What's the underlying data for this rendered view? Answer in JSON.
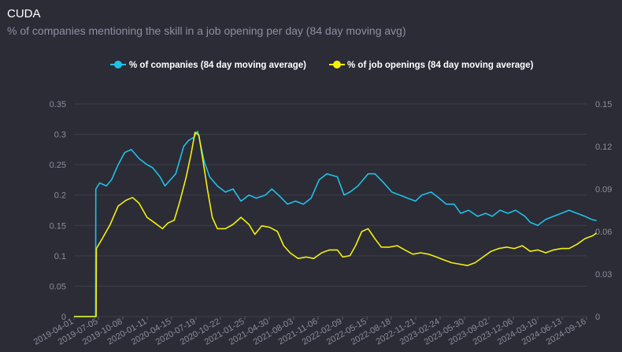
{
  "title": "CUDA",
  "subtitle": "% of companies mentioning the skill in a job opening per day (84 day moving avg)",
  "chart_data": {
    "type": "line",
    "x_dates": [
      "2019-04-01",
      "2019-07-05",
      "2019-10-08",
      "2020-01-11",
      "2020-04-15",
      "2020-07-19",
      "2020-10-22",
      "2021-01-25",
      "2021-04-30",
      "2021-08-03",
      "2021-11-06",
      "2022-02-09",
      "2022-05-15",
      "2022-08-18",
      "2022-11-21",
      "2023-02-24",
      "2023-05-30",
      "2023-09-02",
      "2023-12-06",
      "2024-03-10",
      "2024-06-13",
      "2024-09-16"
    ],
    "y_left": {
      "ticks": [
        "0",
        "0.05",
        "0.1",
        "0.15",
        "0.2",
        "0.25",
        "0.3",
        "0.35"
      ],
      "min": 0,
      "max": 0.35
    },
    "y_right": {
      "ticks": [
        "0",
        "0.03",
        "0.06",
        "0.09",
        "0.12",
        "0.15"
      ],
      "min": 0,
      "max": 0.15
    },
    "legend_position": "top-center",
    "grid": true,
    "series": [
      {
        "name": "% of companies (84 day moving average)",
        "color": "#1fc1e8",
        "axis": "left",
        "points": [
          [
            "2019-04-01",
            0
          ],
          [
            "2019-06-10",
            0
          ],
          [
            "2019-06-24",
            0
          ],
          [
            "2019-06-25",
            0.21
          ],
          [
            "2019-07-10",
            0.22
          ],
          [
            "2019-08-05",
            0.215
          ],
          [
            "2019-08-25",
            0.225
          ],
          [
            "2019-09-20",
            0.25
          ],
          [
            "2019-10-15",
            0.27
          ],
          [
            "2019-11-10",
            0.275
          ],
          [
            "2019-12-10",
            0.26
          ],
          [
            "2020-01-10",
            0.25
          ],
          [
            "2020-02-01",
            0.245
          ],
          [
            "2020-03-01",
            0.23
          ],
          [
            "2020-03-20",
            0.215
          ],
          [
            "2020-04-10",
            0.225
          ],
          [
            "2020-05-01",
            0.235
          ],
          [
            "2020-06-01",
            0.28
          ],
          [
            "2020-06-20",
            0.29
          ],
          [
            "2020-07-10",
            0.295
          ],
          [
            "2020-07-25",
            0.305
          ],
          [
            "2020-08-05",
            0.285
          ],
          [
            "2020-08-20",
            0.255
          ],
          [
            "2020-09-10",
            0.23
          ],
          [
            "2020-10-10",
            0.215
          ],
          [
            "2020-11-10",
            0.205
          ],
          [
            "2020-12-10",
            0.21
          ],
          [
            "2021-01-10",
            0.19
          ],
          [
            "2021-02-10",
            0.2
          ],
          [
            "2021-03-10",
            0.195
          ],
          [
            "2021-04-15",
            0.2
          ],
          [
            "2021-05-10",
            0.21
          ],
          [
            "2021-06-05",
            0.2
          ],
          [
            "2021-07-10",
            0.185
          ],
          [
            "2021-08-10",
            0.19
          ],
          [
            "2021-09-10",
            0.185
          ],
          [
            "2021-10-10",
            0.195
          ],
          [
            "2021-11-10",
            0.225
          ],
          [
            "2021-12-10",
            0.235
          ],
          [
            "2022-01-20",
            0.23
          ],
          [
            "2022-02-15",
            0.2
          ],
          [
            "2022-03-10",
            0.205
          ],
          [
            "2022-04-10",
            0.215
          ],
          [
            "2022-05-20",
            0.235
          ],
          [
            "2022-06-15",
            0.235
          ],
          [
            "2022-07-20",
            0.22
          ],
          [
            "2022-08-20",
            0.205
          ],
          [
            "2022-09-20",
            0.2
          ],
          [
            "2022-10-20",
            0.195
          ],
          [
            "2022-11-20",
            0.19
          ],
          [
            "2022-12-15",
            0.2
          ],
          [
            "2023-01-20",
            0.205
          ],
          [
            "2023-02-20",
            0.195
          ],
          [
            "2023-03-20",
            0.185
          ],
          [
            "2023-04-20",
            0.185
          ],
          [
            "2023-05-15",
            0.17
          ],
          [
            "2023-06-15",
            0.175
          ],
          [
            "2023-07-20",
            0.165
          ],
          [
            "2023-08-20",
            0.17
          ],
          [
            "2023-09-15",
            0.165
          ],
          [
            "2023-10-15",
            0.175
          ],
          [
            "2023-11-15",
            0.17
          ],
          [
            "2023-12-15",
            0.175
          ],
          [
            "2024-01-20",
            0.165
          ],
          [
            "2024-02-10",
            0.155
          ],
          [
            "2024-03-10",
            0.15
          ],
          [
            "2024-04-10",
            0.16
          ],
          [
            "2024-05-10",
            0.165
          ],
          [
            "2024-06-10",
            0.17
          ],
          [
            "2024-07-10",
            0.175
          ],
          [
            "2024-08-10",
            0.17
          ],
          [
            "2024-09-10",
            0.165
          ],
          [
            "2024-10-05",
            0.16
          ],
          [
            "2024-10-25",
            0.158
          ]
        ]
      },
      {
        "name": "% of job openings (84 day moving average)",
        "color": "#f4f00c",
        "axis": "right",
        "points": [
          [
            "2019-04-01",
            0
          ],
          [
            "2019-06-26",
            0
          ],
          [
            "2019-06-27",
            0.048
          ],
          [
            "2019-07-20",
            0.055
          ],
          [
            "2019-08-20",
            0.065
          ],
          [
            "2019-09-20",
            0.078
          ],
          [
            "2019-10-20",
            0.082
          ],
          [
            "2019-11-15",
            0.084
          ],
          [
            "2019-12-10",
            0.08
          ],
          [
            "2020-01-10",
            0.07
          ],
          [
            "2020-02-10",
            0.066
          ],
          [
            "2020-03-10",
            0.062
          ],
          [
            "2020-04-01",
            0.066
          ],
          [
            "2020-04-25",
            0.068
          ],
          [
            "2020-05-15",
            0.08
          ],
          [
            "2020-06-10",
            0.098
          ],
          [
            "2020-06-30",
            0.115
          ],
          [
            "2020-07-15",
            0.13
          ],
          [
            "2020-07-30",
            0.128
          ],
          [
            "2020-08-15",
            0.11
          ],
          [
            "2020-09-01",
            0.09
          ],
          [
            "2020-09-20",
            0.07
          ],
          [
            "2020-10-10",
            0.062
          ],
          [
            "2020-11-10",
            0.062
          ],
          [
            "2020-12-10",
            0.065
          ],
          [
            "2021-01-10",
            0.07
          ],
          [
            "2021-02-10",
            0.065
          ],
          [
            "2021-03-05",
            0.058
          ],
          [
            "2021-04-01",
            0.064
          ],
          [
            "2021-05-01",
            0.063
          ],
          [
            "2021-06-01",
            0.06
          ],
          [
            "2021-06-25",
            0.05
          ],
          [
            "2021-07-20",
            0.045
          ],
          [
            "2021-08-20",
            0.041
          ],
          [
            "2021-09-20",
            0.042
          ],
          [
            "2021-10-20",
            0.041
          ],
          [
            "2021-11-20",
            0.045
          ],
          [
            "2021-12-20",
            0.047
          ],
          [
            "2022-01-20",
            0.047
          ],
          [
            "2022-02-10",
            0.042
          ],
          [
            "2022-03-10",
            0.043
          ],
          [
            "2022-04-01",
            0.05
          ],
          [
            "2022-04-25",
            0.06
          ],
          [
            "2022-05-20",
            0.062
          ],
          [
            "2022-06-15",
            0.055
          ],
          [
            "2022-07-10",
            0.049
          ],
          [
            "2022-08-10",
            0.049
          ],
          [
            "2022-09-10",
            0.05
          ],
          [
            "2022-10-10",
            0.047
          ],
          [
            "2022-11-10",
            0.044
          ],
          [
            "2022-12-10",
            0.045
          ],
          [
            "2023-01-10",
            0.044
          ],
          [
            "2023-02-10",
            0.042
          ],
          [
            "2023-03-10",
            0.04
          ],
          [
            "2023-04-10",
            0.038
          ],
          [
            "2023-05-10",
            0.037
          ],
          [
            "2023-06-10",
            0.036
          ],
          [
            "2023-07-10",
            0.038
          ],
          [
            "2023-08-10",
            0.042
          ],
          [
            "2023-09-10",
            0.046
          ],
          [
            "2023-10-10",
            0.048
          ],
          [
            "2023-11-10",
            0.049
          ],
          [
            "2023-12-10",
            0.048
          ],
          [
            "2024-01-10",
            0.05
          ],
          [
            "2024-02-10",
            0.046
          ],
          [
            "2024-03-10",
            0.047
          ],
          [
            "2024-04-10",
            0.045
          ],
          [
            "2024-05-10",
            0.047
          ],
          [
            "2024-06-10",
            0.048
          ],
          [
            "2024-07-10",
            0.048
          ],
          [
            "2024-08-10",
            0.051
          ],
          [
            "2024-09-10",
            0.055
          ],
          [
            "2024-10-10",
            0.057
          ],
          [
            "2024-10-25",
            0.059
          ]
        ]
      }
    ]
  }
}
